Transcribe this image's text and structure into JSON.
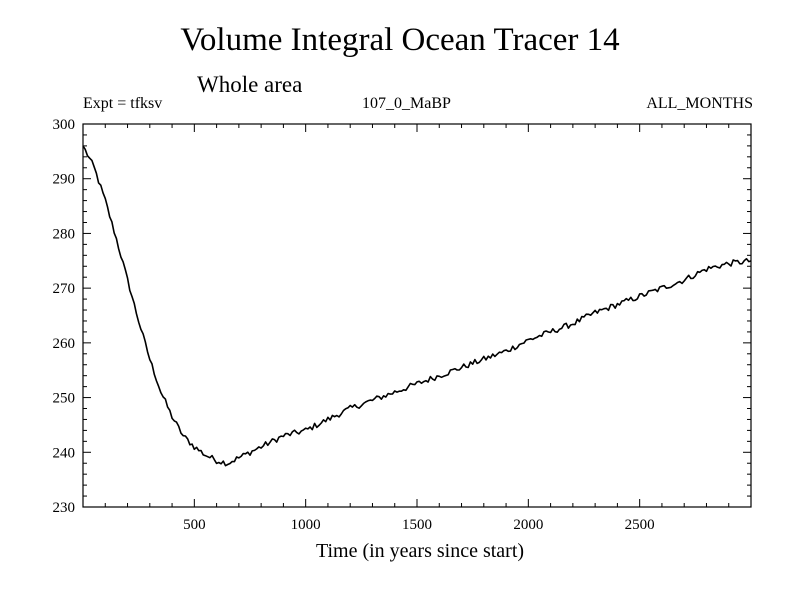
{
  "chart_data": {
    "type": "line",
    "title": "Volume Integral Ocean Tracer 14",
    "subtitle": "Whole area",
    "annotations": {
      "left": "Expt = tfksv",
      "center": "107_0_MaBP",
      "right": "ALL_MONTHS"
    },
    "xlabel": "Time (in years since start)",
    "ylabel": "",
    "xlim": [
      0,
      3000
    ],
    "ylim": [
      230,
      300
    ],
    "x_ticks": [
      500,
      1000,
      1500,
      2000,
      2500
    ],
    "x_tick_labels": [
      "500",
      "1000",
      "1500",
      "2000",
      "2500"
    ],
    "y_ticks": [
      230,
      240,
      250,
      260,
      270,
      280,
      290,
      300
    ],
    "y_tick_labels": [
      "230",
      "240",
      "250",
      "260",
      "270",
      "280",
      "290",
      "300"
    ],
    "series": [
      {
        "name": "Ocean Tracer 14",
        "color": "#000000",
        "x": [
          0,
          50,
          100,
          150,
          200,
          250,
          300,
          350,
          400,
          450,
          500,
          550,
          600,
          650,
          700,
          750,
          800,
          900,
          1000,
          1100,
          1200,
          1300,
          1400,
          1500,
          1600,
          1700,
          1800,
          1900,
          2000,
          2100,
          2200,
          2300,
          2400,
          2500,
          2600,
          2700,
          2800,
          2900,
          3000
        ],
        "values": [
          296,
          292,
          286,
          279,
          271.5,
          264,
          257,
          251,
          246.5,
          243,
          241,
          239.5,
          238.5,
          238,
          239,
          240,
          241,
          243,
          244,
          246,
          248,
          249.5,
          251,
          252.5,
          254,
          255.5,
          257,
          258.5,
          260.5,
          262,
          263.5,
          265.5,
          267,
          268.5,
          270,
          271.5,
          273.5,
          274.5,
          275
        ]
      }
    ]
  }
}
